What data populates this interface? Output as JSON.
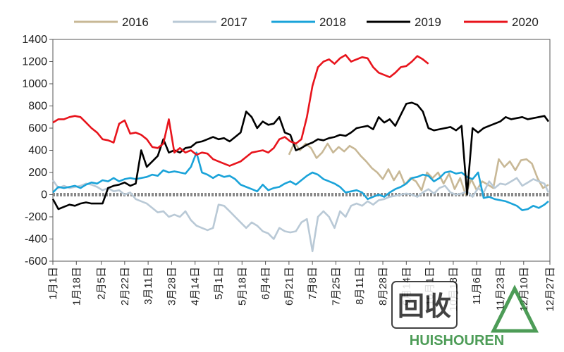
{
  "chart_data": {
    "type": "line",
    "title": "",
    "xlabel": "",
    "ylabel": "",
    "ylim": [
      -600,
      1400
    ],
    "yticks": [
      -600,
      -400,
      -200,
      0,
      200,
      400,
      600,
      800,
      1000,
      1200,
      1400
    ],
    "ytick_labels": [
      "-600",
      "-400",
      "-200",
      "0",
      "200",
      "400",
      "600",
      "800",
      "1000",
      "1200",
      "1400"
    ],
    "xlim": [
      1,
      361
    ],
    "xticks": [
      1,
      18,
      36,
      53,
      70,
      87,
      104,
      121,
      138,
      155,
      172,
      189,
      206,
      223,
      240,
      257,
      274,
      291,
      308,
      325,
      342,
      361
    ],
    "xtick_labels": [
      "1月1日",
      "1月18日",
      "2月5日",
      "2月22日",
      "3月11日",
      "3月28日",
      "4月14日",
      "5月1日",
      "5月18日",
      "6月4日",
      "6月21日",
      "7月8日",
      "7月25日",
      "8月11日",
      "8月28日",
      "9月14日",
      "10月1日",
      "10月18日",
      "11月6日",
      "11月23日",
      "12月10日",
      "12月27日"
    ],
    "zero_line": true,
    "grid": false,
    "legend_position": "top",
    "colors": {
      "2016": "#c8b896",
      "2017": "#b9c9d6",
      "2018": "#1aa3d9",
      "2019": "#000000",
      "2020": "#e8141c"
    },
    "series": [
      {
        "name": "2016",
        "x": [
          172,
          176,
          180,
          184,
          188,
          192,
          196,
          200,
          204,
          208,
          212,
          216,
          220,
          224,
          228,
          232,
          236,
          240,
          244,
          248,
          252,
          256,
          260,
          264,
          268,
          272,
          276,
          280,
          284,
          288,
          292,
          296,
          300,
          304,
          308,
          312,
          316,
          320,
          324,
          328,
          332,
          336,
          340,
          344,
          348,
          352,
          356,
          360
        ],
        "y": [
          360,
          470,
          400,
          460,
          420,
          330,
          380,
          460,
          380,
          430,
          390,
          440,
          410,
          350,
          300,
          240,
          200,
          140,
          230,
          130,
          210,
          90,
          150,
          120,
          40,
          200,
          150,
          200,
          100,
          190,
          50,
          150,
          0,
          140,
          40,
          120,
          90,
          60,
          320,
          250,
          300,
          220,
          310,
          320,
          280,
          150,
          60,
          90
        ]
      },
      {
        "name": "2017",
        "x": [
          1,
          5,
          9,
          13,
          17,
          21,
          25,
          29,
          33,
          37,
          41,
          45,
          49,
          53,
          57,
          61,
          65,
          69,
          73,
          77,
          81,
          85,
          89,
          93,
          97,
          101,
          105,
          109,
          113,
          117,
          121,
          125,
          129,
          133,
          137,
          141,
          145,
          149,
          153,
          157,
          161,
          165,
          169,
          173,
          177,
          181,
          185,
          189,
          193,
          197,
          201,
          205,
          209,
          213,
          217,
          221,
          225,
          229,
          233,
          237,
          241,
          245,
          249,
          253,
          257,
          261,
          265,
          269,
          273,
          277,
          281,
          285,
          289,
          293,
          297,
          301,
          305,
          309,
          313,
          317,
          321,
          325,
          329,
          333,
          337,
          341,
          345,
          349,
          353,
          357,
          360
        ],
        "y": [
          130,
          60,
          80,
          60,
          70,
          80,
          100,
          90,
          70,
          40,
          60,
          30,
          40,
          0,
          20,
          -40,
          -60,
          -80,
          -120,
          -160,
          -150,
          -200,
          -180,
          -200,
          -150,
          -230,
          -280,
          -300,
          -320,
          -300,
          -90,
          -100,
          -150,
          -200,
          -250,
          -300,
          -250,
          -280,
          -330,
          -350,
          -400,
          -300,
          -330,
          -340,
          -330,
          -250,
          -220,
          -510,
          -200,
          -150,
          -200,
          -300,
          -150,
          -200,
          -100,
          -80,
          -100,
          -60,
          -90,
          -50,
          -40,
          -20,
          -10,
          0,
          10,
          0,
          -20,
          20,
          50,
          10,
          60,
          80,
          20,
          0,
          10,
          30,
          -20,
          60,
          20,
          120,
          60,
          100,
          90,
          120,
          150,
          80,
          110,
          140,
          120,
          100,
          20
        ]
      },
      {
        "name": "2018",
        "x": [
          1,
          5,
          9,
          13,
          17,
          21,
          25,
          29,
          33,
          37,
          41,
          45,
          49,
          53,
          57,
          61,
          65,
          69,
          73,
          77,
          81,
          85,
          89,
          93,
          97,
          101,
          105,
          109,
          113,
          117,
          121,
          125,
          129,
          133,
          137,
          141,
          145,
          149,
          153,
          157,
          161,
          165,
          169,
          173,
          177,
          181,
          185,
          189,
          193,
          197,
          201,
          205,
          209,
          213,
          217,
          221,
          225,
          229,
          233,
          237,
          241,
          245,
          249,
          253,
          257,
          261,
          265,
          269,
          273,
          277,
          281,
          285,
          289,
          293,
          297,
          301,
          305,
          309,
          313,
          317,
          321,
          325,
          329,
          333,
          337,
          341,
          345,
          349,
          353,
          357,
          360
        ],
        "y": [
          20,
          70,
          60,
          70,
          80,
          60,
          90,
          110,
          100,
          130,
          120,
          150,
          120,
          140,
          150,
          140,
          150,
          160,
          180,
          170,
          220,
          200,
          210,
          200,
          190,
          250,
          380,
          200,
          180,
          150,
          180,
          160,
          170,
          140,
          90,
          70,
          50,
          30,
          90,
          40,
          60,
          70,
          100,
          120,
          90,
          130,
          170,
          200,
          180,
          140,
          120,
          100,
          70,
          20,
          30,
          40,
          20,
          -40,
          -20,
          0,
          -20,
          20,
          50,
          70,
          100,
          150,
          160,
          180,
          170,
          120,
          150,
          200,
          210,
          190,
          200,
          160,
          140,
          200,
          -30,
          -20,
          -40,
          -50,
          -60,
          -80,
          -100,
          -140,
          -130,
          -100,
          -120,
          -90,
          -60
        ]
      },
      {
        "name": "2019",
        "x": [
          1,
          5,
          9,
          13,
          17,
          21,
          25,
          29,
          33,
          37,
          41,
          45,
          49,
          53,
          57,
          61,
          65,
          69,
          73,
          77,
          81,
          85,
          89,
          93,
          97,
          101,
          105,
          109,
          113,
          117,
          121,
          125,
          129,
          133,
          137,
          141,
          145,
          149,
          153,
          157,
          161,
          165,
          169,
          173,
          177,
          181,
          185,
          189,
          193,
          197,
          201,
          205,
          209,
          213,
          217,
          221,
          225,
          229,
          233,
          237,
          241,
          245,
          249,
          253,
          257,
          261,
          265,
          269,
          273,
          277,
          281,
          285,
          289,
          293,
          297,
          301,
          305,
          309,
          313,
          317,
          321,
          325,
          329,
          333,
          337,
          341,
          345,
          349,
          353,
          357,
          360
        ],
        "y": [
          -40,
          -130,
          -110,
          -90,
          -100,
          -80,
          -70,
          -80,
          -80,
          -80,
          60,
          80,
          90,
          110,
          80,
          100,
          400,
          250,
          300,
          350,
          500,
          380,
          400,
          380,
          420,
          430,
          470,
          480,
          500,
          520,
          500,
          510,
          480,
          520,
          560,
          750,
          700,
          600,
          660,
          630,
          640,
          700,
          560,
          540,
          400,
          420,
          450,
          470,
          500,
          490,
          510,
          520,
          540,
          530,
          560,
          600,
          610,
          620,
          590,
          700,
          650,
          680,
          620,
          720,
          820,
          830,
          810,
          750,
          600,
          580,
          590,
          600,
          610,
          580,
          620,
          0,
          600,
          560,
          600,
          620,
          640,
          660,
          700,
          680,
          690,
          700,
          680,
          690,
          700,
          710,
          660
        ]
      },
      {
        "name": "2020",
        "x": [
          1,
          5,
          9,
          13,
          17,
          21,
          25,
          29,
          33,
          37,
          41,
          45,
          49,
          53,
          57,
          61,
          65,
          69,
          73,
          77,
          81,
          85,
          89,
          93,
          97,
          101,
          105,
          109,
          113,
          117,
          121,
          125,
          129,
          133,
          137,
          141,
          145,
          149,
          153,
          157,
          161,
          165,
          169,
          173,
          177,
          181,
          185,
          189,
          193,
          197,
          201,
          205,
          209,
          213,
          217,
          221,
          225,
          229,
          233,
          237,
          241,
          245,
          249,
          253,
          257,
          261,
          265,
          269,
          273
        ],
        "y": [
          650,
          680,
          680,
          700,
          710,
          700,
          650,
          600,
          560,
          500,
          490,
          470,
          640,
          670,
          550,
          560,
          540,
          500,
          430,
          420,
          460,
          680,
          380,
          420,
          380,
          400,
          360,
          380,
          370,
          320,
          300,
          280,
          260,
          280,
          300,
          340,
          380,
          390,
          400,
          380,
          420,
          500,
          520,
          480,
          460,
          500,
          700,
          980,
          1150,
          1200,
          1220,
          1180,
          1230,
          1260,
          1200,
          1220,
          1240,
          1230,
          1150,
          1100,
          1080,
          1060,
          1100,
          1150,
          1160,
          1200,
          1250,
          1220,
          1180
        ]
      }
    ]
  },
  "watermark": {
    "text": "HUISHOUREN",
    "logo_chars": "回收"
  }
}
